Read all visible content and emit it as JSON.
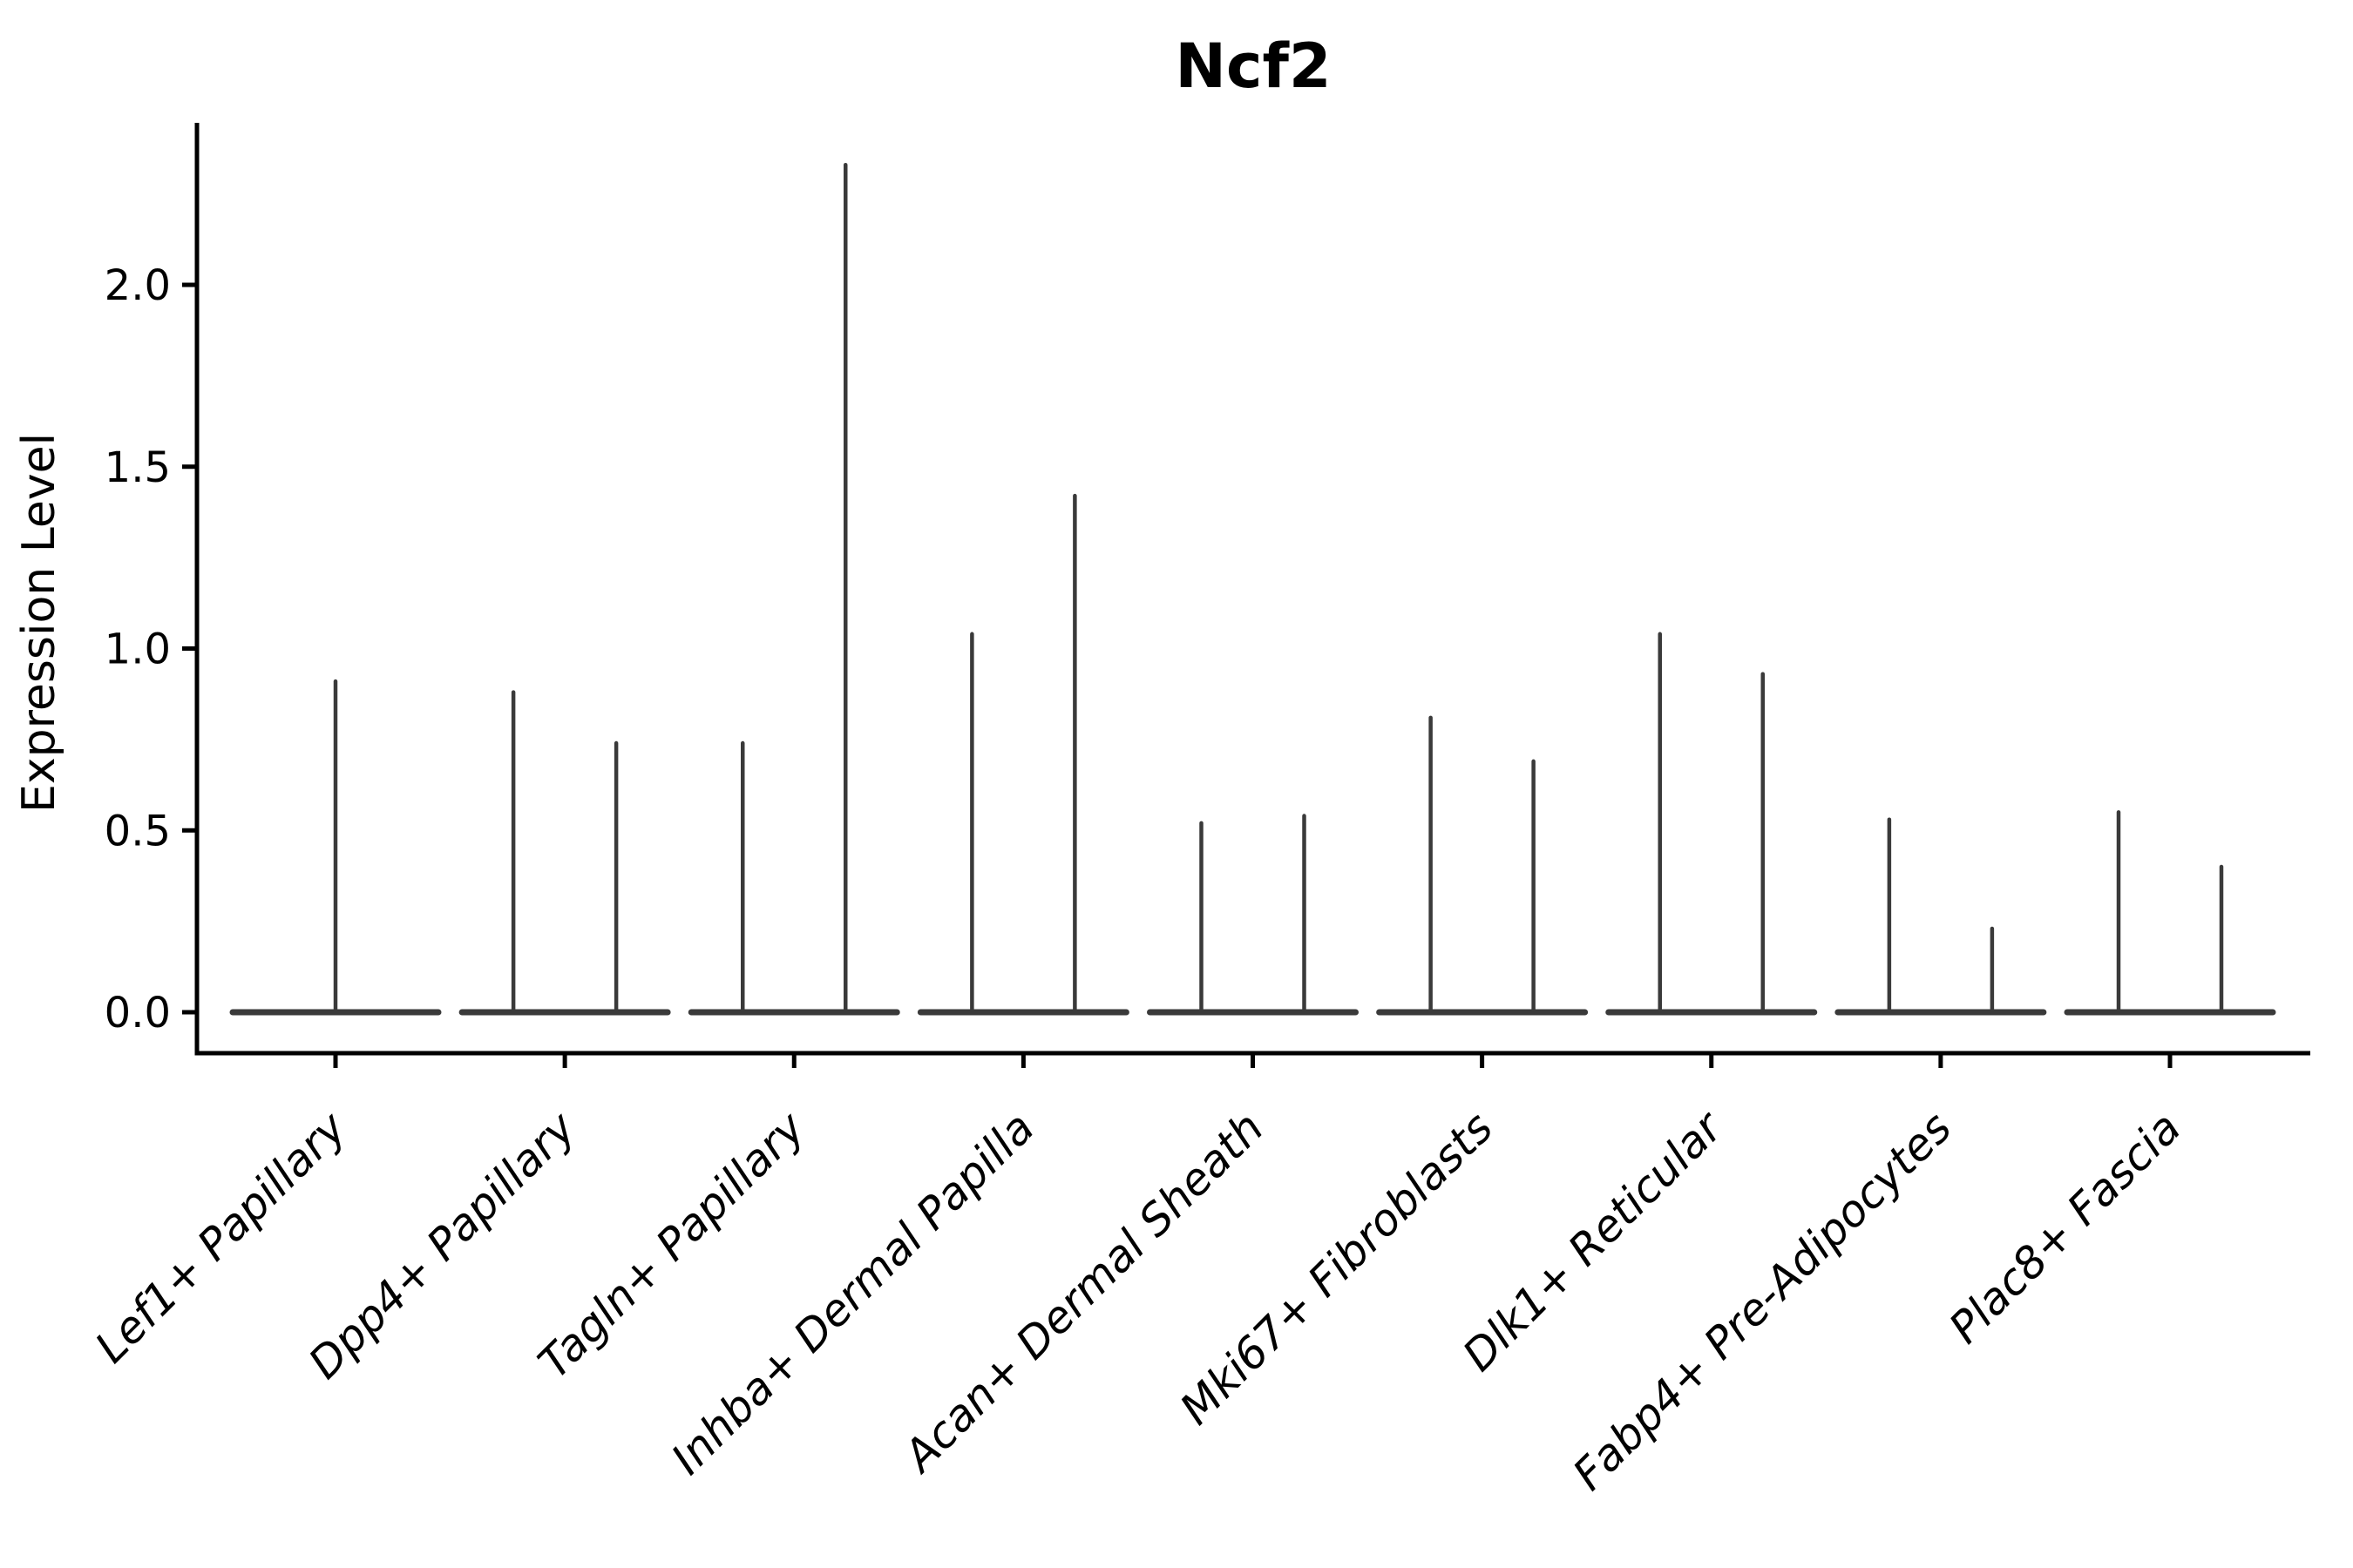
{
  "chart_data": {
    "type": "violin",
    "title": "Ncf2",
    "ylabel": "Expression Level",
    "xlabel": "",
    "ylim": [
      0,
      2.4
    ],
    "yticks": [
      0.0,
      0.5,
      1.0,
      1.5,
      2.0
    ],
    "yticklabels": [
      "0.0",
      "0.5",
      "1.0",
      "1.5",
      "2.0"
    ],
    "grid": false,
    "legend": "none",
    "categories": [
      "Lef1+ Papillary",
      "Dpp4+ Papillary",
      "Tagln+ Papillary",
      "Inhba+ Dermal Papilla",
      "Acan+ Dermal Sheath",
      "Mki67+ Fibroblasts",
      "Dlk1+ Reticular",
      "Fabp4+ Pre-Adipocytes",
      "Plac8+ Fascia"
    ],
    "violin_max_expression_per_category": [
      [
        0.91
      ],
      [
        0.88,
        0.74
      ],
      [
        0.74,
        2.33
      ],
      [
        1.04,
        1.42
      ],
      [
        0.52,
        0.54
      ],
      [
        0.81,
        0.69
      ],
      [
        1.04,
        0.93
      ],
      [
        0.53,
        0.23
      ],
      [
        0.55,
        0.4
      ]
    ],
    "violin_shape_note": "each violin renders as a flat baseline at 0 with a thin central spike up to its max value",
    "colors": {
      "violin": "#3a3a3a",
      "axis": "#000000",
      "text": "#000000",
      "background": "#ffffff"
    }
  }
}
